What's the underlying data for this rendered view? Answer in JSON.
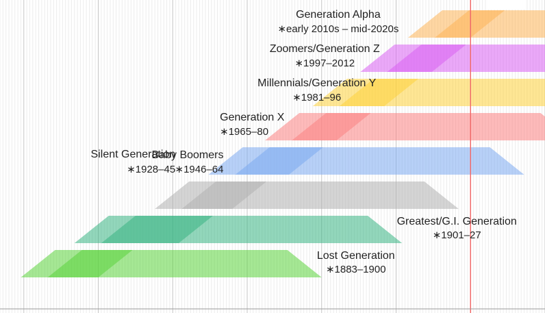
{
  "chart_data": {
    "type": "timeline",
    "title": "",
    "xlabel": "",
    "ylabel": "",
    "x_range": [
      1867,
      2050
    ],
    "grid": "vertical yearly lines, major every 25 years",
    "current_year_marker": 2025,
    "series": [
      {
        "name": "Lost Generation",
        "birth_label": "∗1883–1900",
        "birth_start": 1883,
        "birth_end": 1900,
        "band_start": 1874,
        "band_end": 1975,
        "color": "#5bd33c"
      },
      {
        "name": "Greatest/G.I. Generation",
        "birth_label": "∗1901–27",
        "birth_start": 1901,
        "birth_end": 1927,
        "band_start": 1892,
        "band_end": 2002,
        "color": "#38b584"
      },
      {
        "name": "Silent Generation",
        "birth_label": "∗1928–45",
        "birth_start": 1928,
        "birth_end": 1945,
        "band_start": 1919,
        "band_end": 2021,
        "color": "#b0b0b0"
      },
      {
        "name": "Baby Boomers",
        "birth_label": "∗1946–64",
        "birth_start": 1946,
        "birth_end": 1964,
        "band_start": 1937,
        "band_end": 2043,
        "color": "#7baaf0"
      },
      {
        "name": "Generation X",
        "birth_label": "∗1965–80",
        "birth_start": 1965,
        "birth_end": 1980,
        "band_start": 1956,
        "band_end": 2060,
        "color": "#fb8181"
      },
      {
        "name": "Millennials/Generation Y",
        "birth_label": "∗1981–96",
        "birth_start": 1981,
        "birth_end": 1996,
        "band_start": 1972,
        "band_end": 2076,
        "color": "#fdd23c"
      },
      {
        "name": "Zoomers/Generation Z",
        "birth_label": "∗1997–2012",
        "birth_start": 1997,
        "birth_end": 2012,
        "band_start": 1988,
        "band_end": 2092,
        "color": "#d860f2"
      },
      {
        "name": "Generation Alpha",
        "birth_label": "∗early 2010s – mid-2020s",
        "birth_start": 2013,
        "birth_end": 2025,
        "band_start": 2004,
        "band_end": 2100,
        "color": "#fdb457"
      }
    ]
  }
}
